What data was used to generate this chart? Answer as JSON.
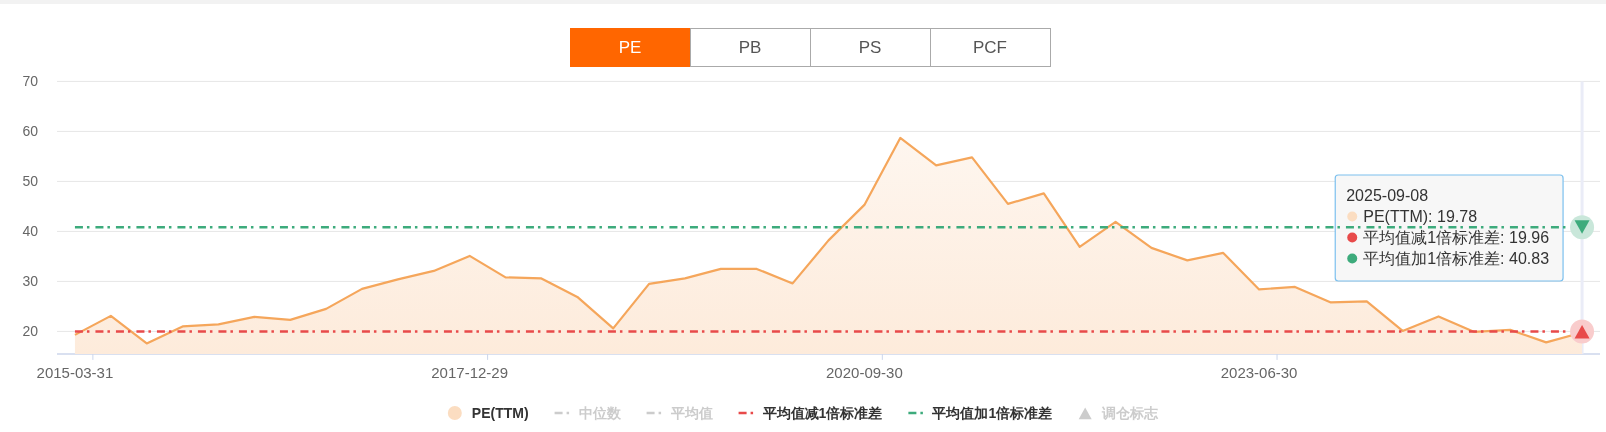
{
  "chart_data": {
    "type": "area",
    "categories": [
      "2015-03-31",
      null,
      null,
      null,
      null,
      null,
      null,
      null,
      null,
      null,
      null,
      "2017-12-29",
      null,
      null,
      null,
      null,
      null,
      null,
      null,
      null,
      null,
      null,
      "2020-09-30",
      null,
      null,
      null,
      null,
      null,
      null,
      null,
      null,
      null,
      null,
      "2023-06-30",
      null,
      null,
      null,
      null,
      null,
      null,
      null,
      null,
      null
    ],
    "series": [
      {
        "name": "PE(TTM)",
        "color": "#f5a65b",
        "values": [
          19.3,
          23.1,
          17.6,
          21.0,
          21.4,
          22.9,
          22.3,
          24.5,
          28.5,
          30.4,
          32.1,
          35.1,
          30.8,
          30.6,
          26.9,
          20.6,
          29.5,
          30.6,
          32.5,
          32.5,
          29.6,
          38.2,
          45.3,
          58.7,
          53.2,
          54.8,
          45.5,
          47.6,
          36.9,
          41.9,
          36.7,
          34.2,
          35.7,
          28.4,
          28.9,
          25.8,
          26.0,
          20.1,
          23.0,
          19.9,
          20.3,
          17.8,
          19.78
        ]
      },
      {
        "name": "中位数",
        "type": "line",
        "line_style": "dashed",
        "color": "#cccccc",
        "values": [
          null,
          null,
          null,
          null,
          null,
          null,
          null,
          null,
          null,
          null,
          null,
          null,
          null,
          null,
          null,
          null,
          null,
          null,
          null,
          null,
          null,
          null,
          null,
          null,
          null,
          null,
          null,
          null,
          null,
          null,
          null,
          null,
          null,
          null,
          null,
          null,
          null,
          null,
          null,
          null,
          null,
          null,
          null
        ]
      },
      {
        "name": "平均值",
        "type": "line",
        "line_style": "dashed",
        "color": "#cccccc",
        "values": [
          null,
          null,
          null,
          null,
          null,
          null,
          null,
          null,
          null,
          null,
          null,
          null,
          null,
          null,
          null,
          null,
          null,
          null,
          null,
          null,
          null,
          null,
          null,
          null,
          null,
          null,
          null,
          null,
          null,
          null,
          null,
          null,
          null,
          null,
          null,
          null,
          null,
          null,
          null,
          null,
          null,
          null,
          null
        ]
      },
      {
        "name": "平均值减1倍标准差",
        "type": "line",
        "line_style": "dashed",
        "color": "#e84a4a",
        "values": [
          19.96,
          19.96,
          19.96,
          19.96,
          19.96,
          19.96,
          19.96,
          19.96,
          19.96,
          19.96,
          19.96,
          19.96,
          19.96,
          19.96,
          19.96,
          19.96,
          19.96,
          19.96,
          19.96,
          19.96,
          19.96,
          19.96,
          19.96,
          19.96,
          19.96,
          19.96,
          19.96,
          19.96,
          19.96,
          19.96,
          19.96,
          19.96,
          19.96,
          19.96,
          19.96,
          19.96,
          19.96,
          19.96,
          19.96,
          19.96,
          19.96,
          19.96,
          19.96
        ]
      },
      {
        "name": "平均值加1倍标准差",
        "type": "line",
        "line_style": "dashed",
        "color": "#3dab7c",
        "values": [
          40.83,
          40.83,
          40.83,
          40.83,
          40.83,
          40.83,
          40.83,
          40.83,
          40.83,
          40.83,
          40.83,
          40.83,
          40.83,
          40.83,
          40.83,
          40.83,
          40.83,
          40.83,
          40.83,
          40.83,
          40.83,
          40.83,
          40.83,
          40.83,
          40.83,
          40.83,
          40.83,
          40.83,
          40.83,
          40.83,
          40.83,
          40.83,
          40.83,
          40.83,
          40.83,
          40.83,
          40.83,
          40.83,
          40.83,
          40.83,
          40.83,
          40.83,
          40.83
        ]
      },
      {
        "name": "调仓标志",
        "type": "scatter",
        "marker": "triangle",
        "color": "#cccccc",
        "values": [
          null,
          null,
          null,
          null,
          null,
          null,
          null,
          null,
          null,
          null,
          null,
          null,
          null,
          null,
          null,
          null,
          null,
          null,
          null,
          null,
          null,
          null,
          null,
          null,
          null,
          null,
          null,
          null,
          null,
          null,
          null,
          null,
          null,
          null,
          null,
          null,
          null,
          null,
          null,
          null,
          null,
          null,
          null
        ]
      }
    ],
    "ylim": [
      15.5,
      70
    ],
    "yticks": [
      20,
      30,
      40,
      50,
      60,
      70
    ],
    "grid": "y",
    "legend": "bottom",
    "annotations": [
      "PE",
      "PB",
      "PS",
      "PCF",
      "2025-09-08",
      "PE(TTM): 19.78",
      "平均值减1倍标准差: 19.96",
      "平均值加1倍标准差: 40.83"
    ]
  }
}
